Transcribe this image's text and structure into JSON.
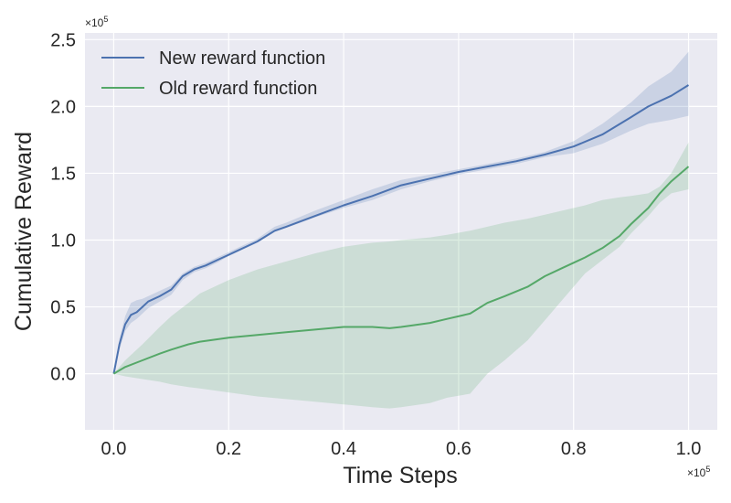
{
  "chart_data": {
    "type": "line",
    "xlabel": "Time Steps",
    "ylabel": "Cumulative Reward",
    "x_multiplier_label": "×10",
    "x_multiplier_exp": "5",
    "y_multiplier_label": "×10",
    "y_multiplier_exp": "5",
    "xlim": [
      -0.05,
      1.05
    ],
    "ylim": [
      -0.42,
      2.55
    ],
    "xticks": [
      0.0,
      0.2,
      0.4,
      0.6,
      0.8,
      1.0
    ],
    "xtick_labels": [
      "0.0",
      "0.2",
      "0.4",
      "0.6",
      "0.8",
      "1.0"
    ],
    "yticks": [
      0.0,
      0.5,
      1.0,
      1.5,
      2.0,
      2.5
    ],
    "ytick_labels": [
      "0.0",
      "0.5",
      "1.0",
      "1.5",
      "2.0",
      "2.5"
    ],
    "grid": true,
    "legend_position": "top-left",
    "background_color": "#eaeaf2",
    "series": [
      {
        "name": "New reward function",
        "color": "#4c72b0",
        "x": [
          0.0,
          0.01,
          0.02,
          0.03,
          0.04,
          0.05,
          0.06,
          0.08,
          0.1,
          0.12,
          0.14,
          0.16,
          0.18,
          0.2,
          0.25,
          0.28,
          0.3,
          0.35,
          0.4,
          0.45,
          0.5,
          0.55,
          0.6,
          0.65,
          0.7,
          0.75,
          0.8,
          0.85,
          0.9,
          0.93,
          0.97,
          1.0
        ],
        "y": [
          0.0,
          0.22,
          0.37,
          0.44,
          0.46,
          0.5,
          0.54,
          0.58,
          0.63,
          0.73,
          0.78,
          0.81,
          0.85,
          0.89,
          0.99,
          1.07,
          1.1,
          1.18,
          1.26,
          1.33,
          1.41,
          1.46,
          1.51,
          1.55,
          1.59,
          1.64,
          1.7,
          1.79,
          1.92,
          2.0,
          2.08,
          2.16
        ],
        "lower": [
          0.0,
          0.18,
          0.32,
          0.38,
          0.41,
          0.45,
          0.49,
          0.54,
          0.59,
          0.7,
          0.76,
          0.79,
          0.83,
          0.88,
          0.98,
          1.06,
          1.09,
          1.17,
          1.24,
          1.3,
          1.38,
          1.44,
          1.49,
          1.53,
          1.57,
          1.62,
          1.65,
          1.72,
          1.82,
          1.87,
          1.9,
          1.93
        ],
        "upper": [
          0.0,
          0.26,
          0.43,
          0.53,
          0.55,
          0.56,
          0.58,
          0.62,
          0.66,
          0.75,
          0.8,
          0.83,
          0.87,
          0.91,
          1.01,
          1.1,
          1.13,
          1.22,
          1.3,
          1.38,
          1.45,
          1.49,
          1.53,
          1.57,
          1.61,
          1.66,
          1.74,
          1.87,
          2.03,
          2.15,
          2.26,
          2.41
        ]
      },
      {
        "name": "Old reward function",
        "color": "#55a868",
        "x": [
          0.0,
          0.02,
          0.05,
          0.08,
          0.1,
          0.13,
          0.15,
          0.2,
          0.25,
          0.3,
          0.35,
          0.4,
          0.45,
          0.48,
          0.5,
          0.55,
          0.58,
          0.62,
          0.65,
          0.68,
          0.72,
          0.75,
          0.78,
          0.82,
          0.85,
          0.88,
          0.9,
          0.93,
          0.95,
          0.97,
          1.0
        ],
        "y": [
          0.0,
          0.05,
          0.1,
          0.15,
          0.18,
          0.22,
          0.24,
          0.27,
          0.29,
          0.31,
          0.33,
          0.35,
          0.35,
          0.34,
          0.35,
          0.38,
          0.41,
          0.45,
          0.53,
          0.58,
          0.65,
          0.73,
          0.79,
          0.87,
          0.94,
          1.03,
          1.12,
          1.24,
          1.35,
          1.44,
          1.55
        ],
        "lower": [
          0.0,
          -0.02,
          -0.04,
          -0.06,
          -0.08,
          -0.1,
          -0.11,
          -0.14,
          -0.17,
          -0.19,
          -0.21,
          -0.23,
          -0.25,
          -0.26,
          -0.25,
          -0.22,
          -0.18,
          -0.15,
          0.0,
          0.1,
          0.25,
          0.4,
          0.55,
          0.75,
          0.85,
          0.95,
          1.05,
          1.18,
          1.28,
          1.35,
          1.38
        ],
        "upper": [
          0.0,
          0.1,
          0.22,
          0.35,
          0.43,
          0.53,
          0.6,
          0.7,
          0.78,
          0.84,
          0.9,
          0.95,
          0.98,
          0.99,
          1.0,
          1.02,
          1.04,
          1.07,
          1.1,
          1.13,
          1.16,
          1.19,
          1.22,
          1.26,
          1.3,
          1.32,
          1.33,
          1.35,
          1.4,
          1.5,
          1.73
        ]
      }
    ]
  }
}
